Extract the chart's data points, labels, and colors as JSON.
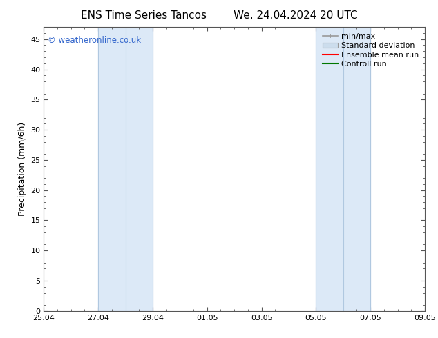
{
  "title_left": "ENS Time Series Tancos",
  "title_right": "We. 24.04.2024 20 UTC",
  "ylabel": "Precipitation (mm/6h)",
  "ylim": [
    0,
    47
  ],
  "yticks": [
    0,
    5,
    10,
    15,
    20,
    25,
    30,
    35,
    40,
    45
  ],
  "xtick_positions": [
    0,
    2,
    4,
    6,
    8,
    10,
    12,
    14
  ],
  "xtick_labels": [
    "25.04",
    "27.04",
    "29.04",
    "01.05",
    "03.05",
    "05.05",
    "07.05",
    "09.05"
  ],
  "xlim": [
    0,
    14
  ],
  "shaded_regions": [
    {
      "xmin": 2,
      "xmax": 3,
      "color": "#dce9f7",
      "edge_color": "#b0c8e0"
    },
    {
      "xmin": 3,
      "xmax": 4,
      "color": "#dce9f7",
      "edge_color": "#b0c8e0"
    },
    {
      "xmin": 10,
      "xmax": 11,
      "color": "#dce9f7",
      "edge_color": "#b0c8e0"
    },
    {
      "xmin": 11,
      "xmax": 12,
      "color": "#dce9f7",
      "edge_color": "#b0c8e0"
    }
  ],
  "watermark": "© weatheronline.co.uk",
  "watermark_color": "#3366cc",
  "legend_items": [
    {
      "label": "min/max",
      "color": "#999999"
    },
    {
      "label": "Standard deviation",
      "color": "#ccdded"
    },
    {
      "label": "Ensemble mean run",
      "color": "#ff0000"
    },
    {
      "label": "Controll run",
      "color": "#007700"
    }
  ],
  "bg_color": "#ffffff",
  "spine_color": "#555555",
  "tick_color": "#555555",
  "title_fontsize": 11,
  "axis_label_fontsize": 9,
  "tick_fontsize": 8,
  "legend_fontsize": 8
}
